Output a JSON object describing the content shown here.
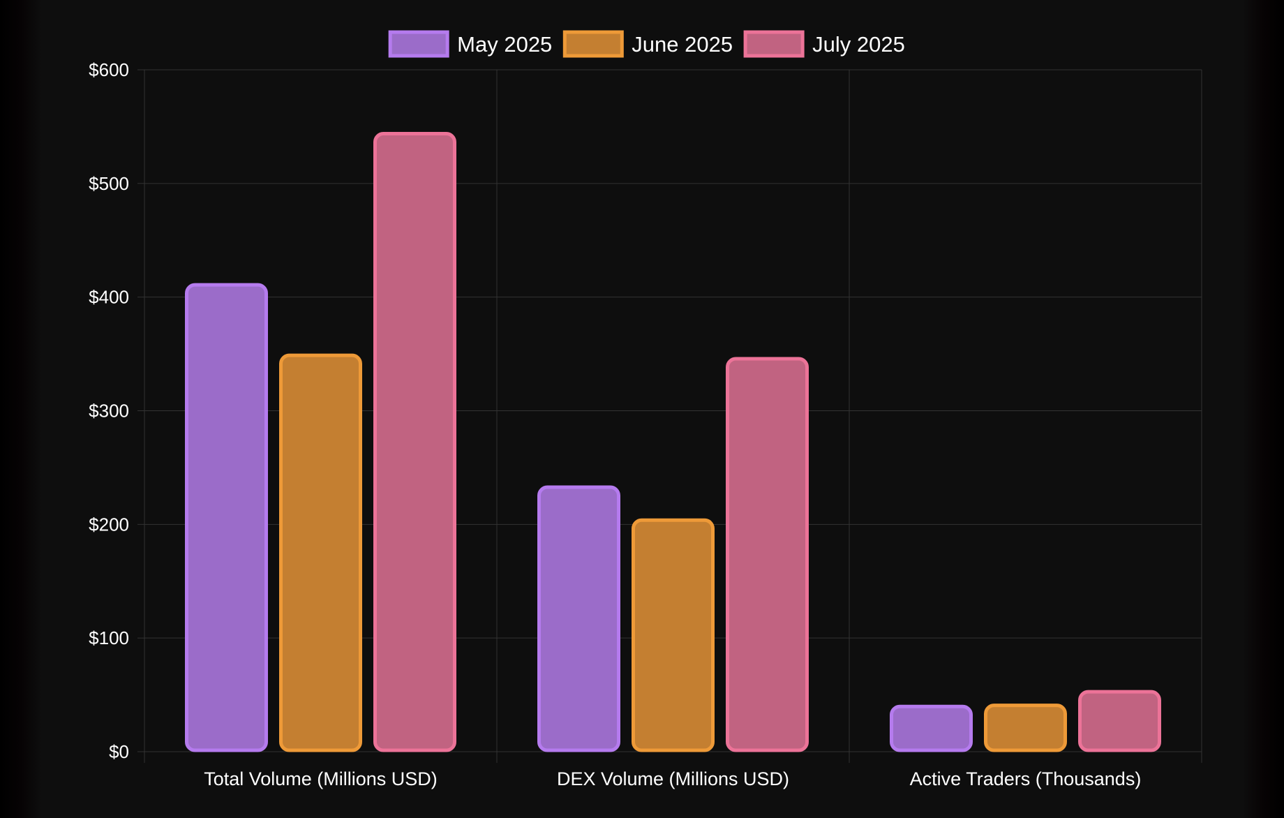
{
  "chart_data": {
    "type": "bar",
    "title": "",
    "xlabel": "",
    "ylabel": "",
    "categories": [
      "Total Volume (Millions USD)",
      "DEX Volume (Millions USD)",
      "Active Traders (Thousands)"
    ],
    "series": [
      {
        "name": "May 2025",
        "values": [
          412,
          234,
          41
        ],
        "fill": "#9b6cc9",
        "border": "#b57bee"
      },
      {
        "name": "June 2025",
        "values": [
          350,
          205,
          42
        ],
        "fill": "#c47f31",
        "border": "#ee9a38"
      },
      {
        "name": "July 2025",
        "values": [
          545,
          347,
          54
        ],
        "fill": "#c16381",
        "border": "#ec7398"
      }
    ],
    "ylim": [
      0,
      600
    ],
    "yticks": [
      0,
      100,
      200,
      300,
      400,
      500,
      600
    ],
    "ytick_labels": [
      "$0",
      "$100",
      "$200",
      "$300",
      "$400",
      "$500",
      "$600"
    ],
    "grid": true,
    "legend_position": "top-center",
    "background": "#0e0e0e",
    "grid_color": "#333333",
    "text_color": "#ffffff"
  }
}
